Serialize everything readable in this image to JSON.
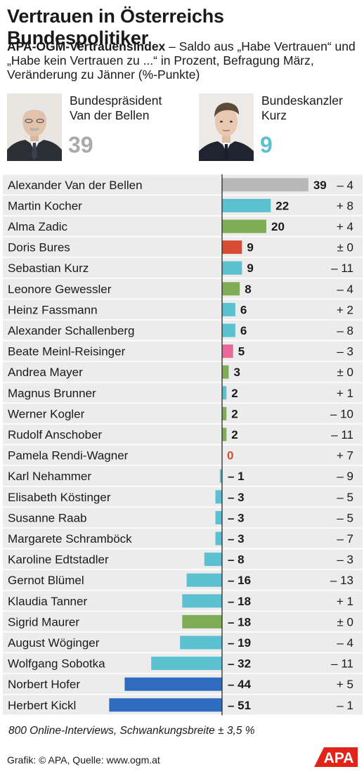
{
  "title": "Vertrauen in Österreichs Bundespolitiker",
  "subtitle": {
    "bold": "APA-OGM-Vertrauensindex",
    "rest": " – Saldo aus „Habe Vertrauen“ und „Habe kein Vertrauen zu ...“ in Prozent, Befragung März, Veränderung zu Jänner (%-Punkte)"
  },
  "featured": [
    {
      "role": "Bundespräsident",
      "name": "Van der Bellen",
      "value": "39",
      "color": "#aaaaaa"
    },
    {
      "role": "Bundeskanzler",
      "name": "Kurz",
      "value": "9",
      "color": "#5bc0d0"
    }
  ],
  "chart_data": {
    "type": "bar",
    "orientation": "horizontal",
    "categories": [
      "Alexander Van der Bellen",
      "Martin Kocher",
      "Alma Zadic",
      "Doris Bures",
      "Sebastian Kurz",
      "Leonore Gewessler",
      "Heinz Fassmann",
      "Alexander Schallenberg",
      "Beate Meinl-Reisinger",
      "Andrea Mayer",
      "Magnus Brunner",
      "Werner Kogler",
      "Rudolf Anschober",
      "Pamela Rendi-Wagner",
      "Karl Nehammer",
      "Elisabeth Köstinger",
      "Susanne Raab",
      "Margarete Schramböck",
      "Karoline Edtstadler",
      "Gernot Blümel",
      "Klaudia Tanner",
      "Sigrid Maurer",
      "August Wöginger",
      "Wolfgang Sobotka",
      "Norbert Hofer",
      "Herbert Kickl"
    ],
    "values": [
      39,
      22,
      20,
      9,
      9,
      8,
      6,
      6,
      5,
      3,
      2,
      2,
      2,
      0,
      -1,
      -3,
      -3,
      -3,
      -8,
      -16,
      -18,
      -18,
      -19,
      -32,
      -44,
      -51
    ],
    "value_labels": [
      "39",
      "22",
      "20",
      "9",
      "9",
      "8",
      "6",
      "6",
      "5",
      "3",
      "2",
      "2",
      "2",
      "0",
      "– 1",
      "– 3",
      "– 3",
      "– 3",
      "– 8",
      "– 16",
      "– 18",
      "– 18",
      "– 19",
      "– 32",
      "– 44",
      "– 51"
    ],
    "change_labels": [
      "– 4",
      "+ 8",
      "+ 4",
      "± 0",
      "– 11",
      "– 4",
      "+ 2",
      "– 8",
      "– 3",
      "± 0",
      "+ 1",
      "– 10",
      "– 11",
      "+ 7",
      "– 9",
      "– 5",
      "– 5",
      "– 7",
      "– 3",
      "– 13",
      "+ 1",
      "± 0",
      "– 4",
      "– 11",
      "+ 5",
      "– 1"
    ],
    "colors": [
      "#b8b8b8",
      "#5bc0d0",
      "#7fad55",
      "#d64b32",
      "#5bc0d0",
      "#7fad55",
      "#5bc0d0",
      "#5bc0d0",
      "#e8699a",
      "#7fad55",
      "#5bc0d0",
      "#7fad55",
      "#7fad55",
      "#d64b32",
      "#5bc0d0",
      "#5bc0d0",
      "#5bc0d0",
      "#5bc0d0",
      "#5bc0d0",
      "#5bc0d0",
      "#5bc0d0",
      "#7fad55",
      "#5bc0d0",
      "#5bc0d0",
      "#2f6bbf",
      "#2f6bbf"
    ],
    "zero_label_color": "#d64b32",
    "xlim": [
      -51,
      39
    ],
    "grid": false,
    "legend": "none"
  },
  "footnote": "800 Online-Interviews, Schwankungsbreite ± 3,5 %",
  "source": "Grafik: © APA, Quelle: www.ogm.at",
  "logo_text": "APA"
}
